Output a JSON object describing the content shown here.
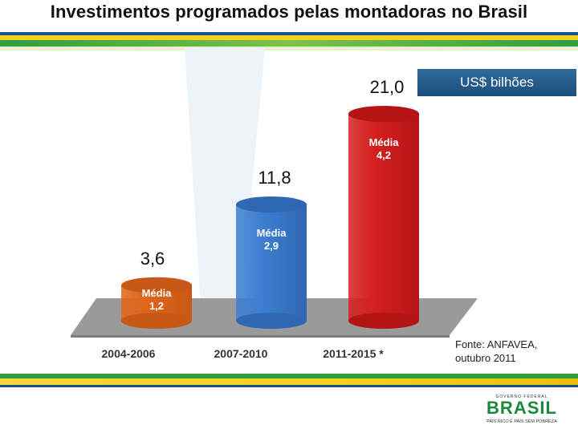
{
  "slide": {
    "title": "Investimentos programados pelas montadoras no Brasil",
    "unit_label": "US$ bilhões",
    "source_line1": "Fonte: ANFAVEA,",
    "source_line2": "outubro 2011"
  },
  "logo": {
    "top_text": "GOVERNO FEDERAL",
    "main_text": "BRASIL",
    "sub_text": "PAÍS RICO É PAÍS SEM POBREZA"
  },
  "colors": {
    "band_green": "#2e9e3f",
    "band_yellow": "#f3d11c",
    "band_blue": "#1f4f8f",
    "floor": "#9a9a9a",
    "legend_box": "#1d4f7c"
  },
  "chart_data": {
    "type": "bar",
    "style": "3d-cylinder",
    "categories": [
      "2004-2006",
      "2007-2010",
      "2011-2015 *"
    ],
    "values": [
      3.6,
      11.8,
      21.0
    ],
    "value_labels": [
      "3,6",
      "11,8",
      "21,0"
    ],
    "averages": [
      1.2,
      2.9,
      4.2
    ],
    "average_title": "Média",
    "average_labels": [
      "1,2",
      "2,9",
      "4,2"
    ],
    "bar_colors": [
      "#e0661a",
      "#3e7fd1",
      "#d42020"
    ],
    "bar_top_colors": [
      "#c75815",
      "#2f67b3",
      "#b51414"
    ],
    "unit": "US$ bilhões",
    "ylim": [
      0,
      21.0
    ],
    "grid": false,
    "legend": "none"
  }
}
